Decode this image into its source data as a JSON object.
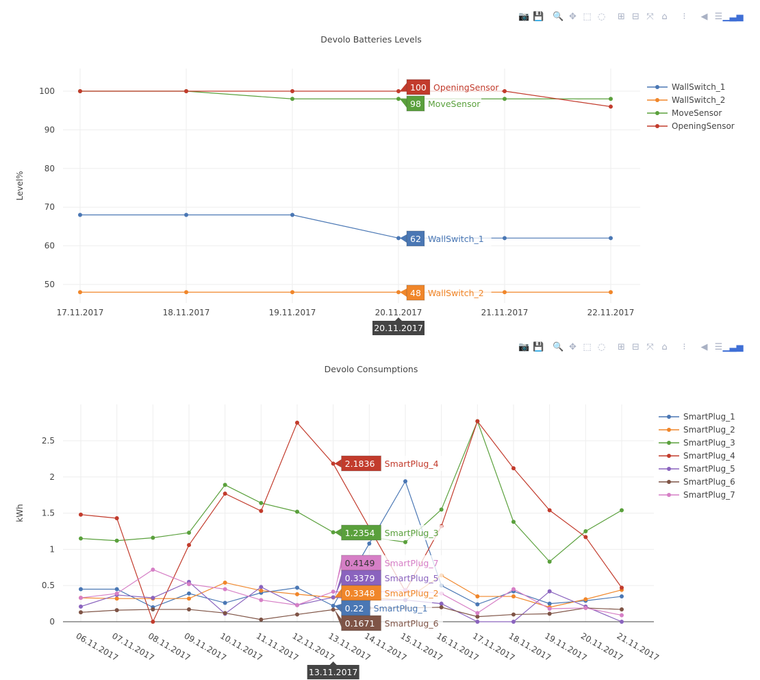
{
  "modebar": [
    {
      "name": "camera-icon",
      "glyph": "📷"
    },
    {
      "name": "save-icon",
      "glyph": "💾"
    },
    {
      "name": "zoom-icon",
      "glyph": "🔍"
    },
    {
      "name": "pan-icon",
      "glyph": "✥"
    },
    {
      "name": "box-select-icon",
      "glyph": "⬚"
    },
    {
      "name": "lasso-icon",
      "glyph": "◌"
    },
    {
      "name": "zoom-in-icon",
      "glyph": "⊞"
    },
    {
      "name": "zoom-out-icon",
      "glyph": "⊟"
    },
    {
      "name": "autoscale-icon",
      "glyph": "⤧"
    },
    {
      "name": "reset-axes-icon",
      "glyph": "⌂"
    },
    {
      "name": "spike-lines-icon",
      "glyph": "⁝"
    },
    {
      "name": "hover-closest-icon",
      "glyph": "◀"
    },
    {
      "name": "hover-compare-icon",
      "glyph": "☰"
    },
    {
      "name": "plotly-logo-icon",
      "glyph": "▁▃▅"
    }
  ],
  "chart_data": [
    {
      "type": "line",
      "title": "Devolo Batteries Levels",
      "xlabel": "",
      "ylabel": "Level%",
      "categories": [
        "17.11.2017",
        "18.11.2017",
        "19.11.2017",
        "20.11.2017",
        "21.11.2017",
        "22.11.2017"
      ],
      "yticks": [
        50,
        60,
        70,
        80,
        90,
        100
      ],
      "ylim": [
        45,
        102
      ],
      "grid": true,
      "legend_position": "top-right",
      "series": [
        {
          "name": "WallSwitch_1",
          "color": "#4a77b4",
          "values": [
            68,
            68,
            68,
            62,
            62,
            62
          ]
        },
        {
          "name": "WallSwitch_2",
          "color": "#f0862a",
          "values": [
            48,
            48,
            48,
            48,
            48,
            48
          ]
        },
        {
          "name": "MoveSensor",
          "color": "#5aa03c",
          "values": [
            100,
            100,
            98,
            98,
            98,
            98
          ]
        },
        {
          "name": "OpeningSensor",
          "color": "#c23b2c",
          "values": [
            100,
            100,
            100,
            100,
            100,
            96
          ]
        }
      ],
      "hover": {
        "x": "20.11.2017",
        "labels": [
          {
            "series": "OpeningSensor",
            "value": "100"
          },
          {
            "series": "MoveSensor",
            "value": "98"
          },
          {
            "series": "WallSwitch_1",
            "value": "62"
          },
          {
            "series": "WallSwitch_2",
            "value": "48"
          }
        ]
      }
    },
    {
      "type": "line",
      "title": "Devolo Consumptions",
      "xlabel": "",
      "ylabel": "kWh",
      "categories": [
        "06.11.2017",
        "07.11.2017",
        "08.11.2017",
        "09.11.2017",
        "10.11.2017",
        "11.11.2017",
        "12.11.2017",
        "13.11.2017",
        "14.11.2017",
        "15.11.2017",
        "16.11.2017",
        "17.11.2017",
        "18.11.2017",
        "19.11.2017",
        "20.11.2017",
        "21.11.2017"
      ],
      "yticks": [
        0,
        0.5,
        1,
        1.5,
        2,
        2.5
      ],
      "ylim": [
        0,
        2.95
      ],
      "grid": true,
      "legend_position": "top-right",
      "series": [
        {
          "name": "SmartPlug_1",
          "color": "#4a77b4",
          "values": [
            0.45,
            0.45,
            0.2,
            0.39,
            0.26,
            0.4,
            0.47,
            0.22,
            1.08,
            1.94,
            0.5,
            0.24,
            0.42,
            0.25,
            0.29,
            0.35
          ]
        },
        {
          "name": "SmartPlug_2",
          "color": "#f0862a",
          "values": [
            0.33,
            0.32,
            0.32,
            0.32,
            0.54,
            0.43,
            0.38,
            0.3348,
            0.33,
            0.3,
            0.64,
            0.35,
            0.35,
            0.2,
            0.31,
            0.44
          ]
        },
        {
          "name": "SmartPlug_3",
          "color": "#5aa03c",
          "values": [
            1.15,
            1.12,
            1.16,
            1.23,
            1.89,
            1.64,
            1.52,
            1.2354,
            1.17,
            1.1,
            1.55,
            2.77,
            1.38,
            0.83,
            1.25,
            1.54
          ]
        },
        {
          "name": "SmartPlug_4",
          "color": "#c23b2c",
          "values": [
            1.48,
            1.43,
            0,
            1.06,
            1.77,
            1.53,
            2.75,
            2.1836,
            1.3,
            0.42,
            1.32,
            2.77,
            2.12,
            1.54,
            1.17,
            0.47
          ]
        },
        {
          "name": "SmartPlug_5",
          "color": "#8a63be",
          "values": [
            0.21,
            0.37,
            0.33,
            0.55,
            0.11,
            0.48,
            0.23,
            0.3379,
            0.3,
            0.3,
            0.25,
            0,
            0,
            0.42,
            0.21,
            0
          ]
        },
        {
          "name": "SmartPlug_6",
          "color": "#7f5446",
          "values": [
            0.13,
            0.16,
            0.17,
            0.17,
            0.12,
            0.03,
            0.1,
            0.1671,
            0.19,
            0.19,
            0.2,
            0.07,
            0.1,
            0.11,
            0.19,
            0.17
          ]
        },
        {
          "name": "SmartPlug_7",
          "color": "#d67fc6",
          "values": [
            0.33,
            0.39,
            0.72,
            0.52,
            0.45,
            0.3,
            0.23,
            0.4149,
            0.4,
            0.44,
            0.39,
            0.12,
            0.45,
            0.18,
            0.19,
            0.09
          ]
        }
      ],
      "hover": {
        "x": "13.11.2017",
        "labels": [
          {
            "series": "SmartPlug_4",
            "value": "2.1836"
          },
          {
            "series": "SmartPlug_3",
            "value": "1.2354"
          },
          {
            "series": "SmartPlug_7",
            "value": "0.4149"
          },
          {
            "series": "SmartPlug_5",
            "value": "0.3379"
          },
          {
            "series": "SmartPlug_2",
            "value": "0.3348"
          },
          {
            "series": "SmartPlug_1",
            "value": "0.22"
          },
          {
            "series": "SmartPlug_6",
            "value": "0.1671"
          }
        ]
      }
    }
  ]
}
